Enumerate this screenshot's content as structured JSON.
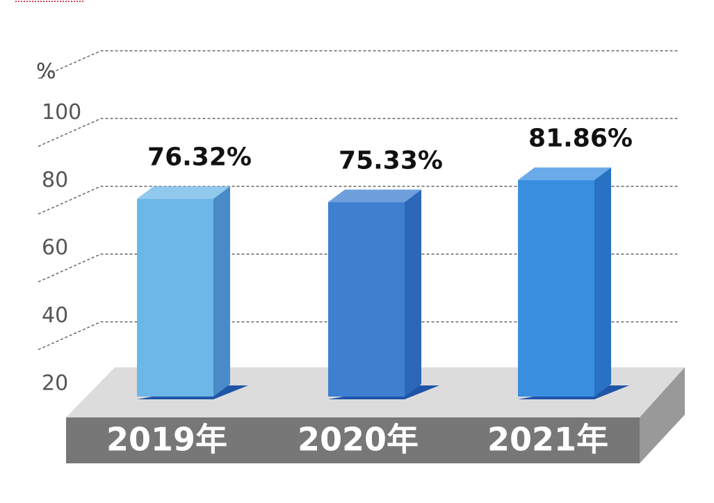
{
  "chart_data": {
    "type": "bar3d",
    "y_label": "%",
    "categories": [
      "2019年",
      "2020年",
      "2021年"
    ],
    "values": [
      76.32,
      75.33,
      81.86
    ],
    "value_labels": [
      "76.32%",
      "75.33%",
      "81.86%"
    ],
    "colors": [
      "#6cb6e8",
      "#3f7fd0",
      "#3a8ee0"
    ],
    "ylim": [
      20,
      120
    ],
    "yticks": [
      20,
      40,
      60,
      80,
      100
    ],
    "grid": true
  }
}
